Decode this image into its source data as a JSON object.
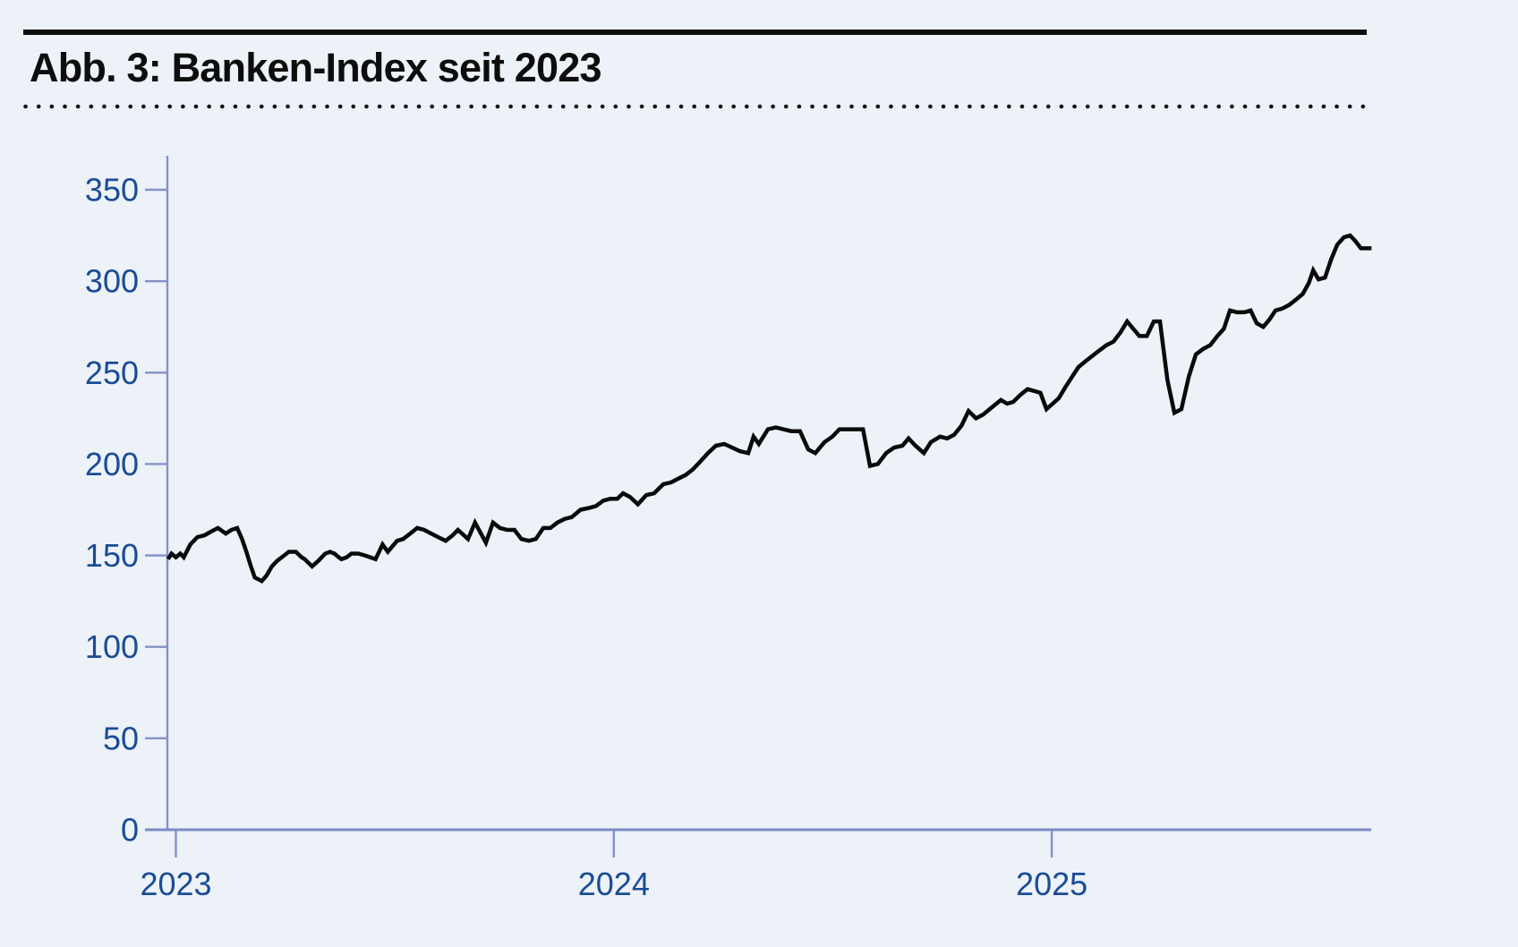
{
  "header": {
    "title": "Abb. 3: Banken-Index seit 2023"
  },
  "colors": {
    "background": "#edf1f8",
    "title": "#0d0d0d",
    "rule": "#0d0d0d",
    "dots": "#111111",
    "y_axis": "#8292c9",
    "x_axis": "#7b8cc4",
    "tick": "#8292c9",
    "tick_label": "#1a4c96",
    "series_line": "#0a0a0a"
  },
  "chart_data": {
    "type": "line",
    "title": "Abb. 3: Banken-Index seit 2023",
    "xlabel": "",
    "ylabel": "",
    "grid": false,
    "legend": null,
    "x_ticks": [
      2023,
      2024,
      2025
    ],
    "x_tick_labels": [
      "2023",
      "2024",
      "2025"
    ],
    "y_ticks": [
      0,
      50,
      100,
      150,
      200,
      250,
      300,
      350
    ],
    "y_tick_labels": [
      "0",
      "50",
      "100",
      "150",
      "200",
      "250",
      "300",
      "350"
    ],
    "xlim": [
      2022.98,
      2025.74
    ],
    "ylim": [
      0,
      369
    ],
    "series": [
      {
        "name": "Banken-Index",
        "color": "#0a0a0a",
        "points": [
          [
            2022.982,
            148
          ],
          [
            2022.99,
            151
          ],
          [
            2023.0,
            149
          ],
          [
            2023.01,
            151
          ],
          [
            2023.018,
            149
          ],
          [
            2023.033,
            156
          ],
          [
            2023.049,
            160
          ],
          [
            2023.065,
            161
          ],
          [
            2023.08,
            163
          ],
          [
            2023.096,
            165
          ],
          [
            2023.114,
            162
          ],
          [
            2023.127,
            164
          ],
          [
            2023.14,
            165
          ],
          [
            2023.151,
            159
          ],
          [
            2023.161,
            152
          ],
          [
            2023.17,
            145
          ],
          [
            2023.18,
            138
          ],
          [
            2023.196,
            136
          ],
          [
            2023.207,
            139
          ],
          [
            2023.219,
            144
          ],
          [
            2023.231,
            147
          ],
          [
            2023.247,
            150
          ],
          [
            2023.258,
            152
          ],
          [
            2023.274,
            152
          ],
          [
            2023.287,
            149
          ],
          [
            2023.294,
            148
          ],
          [
            2023.311,
            144
          ],
          [
            2023.325,
            147
          ],
          [
            2023.341,
            151
          ],
          [
            2023.352,
            152
          ],
          [
            2023.362,
            151
          ],
          [
            2023.372,
            149
          ],
          [
            2023.378,
            148
          ],
          [
            2023.39,
            149
          ],
          [
            2023.401,
            151
          ],
          [
            2023.417,
            151
          ],
          [
            2023.432,
            150
          ],
          [
            2023.444,
            149
          ],
          [
            2023.456,
            148
          ],
          [
            2023.472,
            156
          ],
          [
            2023.484,
            152
          ],
          [
            2023.505,
            158
          ],
          [
            2023.519,
            159
          ],
          [
            2023.535,
            162
          ],
          [
            2023.551,
            165
          ],
          [
            2023.567,
            164
          ],
          [
            2023.583,
            162
          ],
          [
            2023.599,
            160
          ],
          [
            2023.616,
            158
          ],
          [
            2023.632,
            161
          ],
          [
            2023.644,
            164
          ],
          [
            2023.667,
            159
          ],
          [
            2023.683,
            168
          ],
          [
            2023.708,
            157
          ],
          [
            2023.724,
            168
          ],
          [
            2023.74,
            165
          ],
          [
            2023.757,
            164
          ],
          [
            2023.773,
            164
          ],
          [
            2023.789,
            159
          ],
          [
            2023.806,
            158
          ],
          [
            2023.822,
            159
          ],
          [
            2023.839,
            165
          ],
          [
            2023.855,
            165
          ],
          [
            2023.871,
            168
          ],
          [
            2023.888,
            170
          ],
          [
            2023.904,
            171
          ],
          [
            2023.924,
            175
          ],
          [
            2023.943,
            176
          ],
          [
            2023.959,
            177
          ],
          [
            2023.976,
            180
          ],
          [
            2023.992,
            181
          ],
          [
            2024.008,
            181
          ],
          [
            2024.021,
            184
          ],
          [
            2024.037,
            182
          ],
          [
            2024.055,
            178
          ],
          [
            2024.074,
            183
          ],
          [
            2024.092,
            184
          ],
          [
            2024.113,
            189
          ],
          [
            2024.131,
            190
          ],
          [
            2024.147,
            192
          ],
          [
            2024.164,
            194
          ],
          [
            2024.18,
            197
          ],
          [
            2024.196,
            201
          ],
          [
            2024.215,
            206
          ],
          [
            2024.233,
            210
          ],
          [
            2024.252,
            211
          ],
          [
            2024.27,
            209
          ],
          [
            2024.288,
            207
          ],
          [
            2024.307,
            206
          ],
          [
            2024.319,
            215
          ],
          [
            2024.331,
            211
          ],
          [
            2024.352,
            219
          ],
          [
            2024.37,
            220
          ],
          [
            2024.387,
            219
          ],
          [
            2024.405,
            218
          ],
          [
            2024.425,
            218
          ],
          [
            2024.444,
            208
          ],
          [
            2024.46,
            206
          ],
          [
            2024.481,
            212
          ],
          [
            2024.499,
            215
          ],
          [
            2024.515,
            219
          ],
          [
            2024.534,
            219
          ],
          [
            2024.552,
            219
          ],
          [
            2024.569,
            219
          ],
          [
            2024.585,
            199
          ],
          [
            2024.603,
            200
          ],
          [
            2024.622,
            206
          ],
          [
            2024.64,
            209
          ],
          [
            2024.659,
            210
          ],
          [
            2024.673,
            214
          ],
          [
            2024.689,
            210
          ],
          [
            2024.708,
            206
          ],
          [
            2024.724,
            212
          ],
          [
            2024.745,
            215
          ],
          [
            2024.761,
            214
          ],
          [
            2024.777,
            216
          ],
          [
            2024.794,
            221
          ],
          [
            2024.81,
            229
          ],
          [
            2024.827,
            225
          ],
          [
            2024.843,
            227
          ],
          [
            2024.863,
            231
          ],
          [
            2024.884,
            235
          ],
          [
            2024.898,
            233
          ],
          [
            2024.912,
            234
          ],
          [
            2024.929,
            238
          ],
          [
            2024.945,
            241
          ],
          [
            2024.959,
            240
          ],
          [
            2024.974,
            239
          ],
          [
            2024.988,
            230
          ],
          [
            2025.002,
            233
          ],
          [
            2025.016,
            236
          ],
          [
            2025.031,
            242
          ],
          [
            2025.047,
            248
          ],
          [
            2025.061,
            253
          ],
          [
            2025.076,
            256
          ],
          [
            2025.092,
            259
          ],
          [
            2025.108,
            262
          ],
          [
            2025.125,
            265
          ],
          [
            2025.141,
            267
          ],
          [
            2025.157,
            272
          ],
          [
            2025.172,
            278
          ],
          [
            2025.186,
            274
          ],
          [
            2025.2,
            270
          ],
          [
            2025.217,
            270
          ],
          [
            2025.233,
            278
          ],
          [
            2025.247,
            278
          ],
          [
            2025.264,
            246
          ],
          [
            2025.28,
            228
          ],
          [
            2025.296,
            230
          ],
          [
            2025.313,
            248
          ],
          [
            2025.329,
            260
          ],
          [
            2025.346,
            263
          ],
          [
            2025.362,
            265
          ],
          [
            2025.378,
            270
          ],
          [
            2025.393,
            274
          ],
          [
            2025.407,
            284
          ],
          [
            2025.423,
            283
          ],
          [
            2025.44,
            283
          ],
          [
            2025.454,
            284
          ],
          [
            2025.468,
            277
          ],
          [
            2025.483,
            275
          ],
          [
            2025.497,
            279
          ],
          [
            2025.511,
            284
          ],
          [
            2025.526,
            285
          ],
          [
            2025.542,
            287
          ],
          [
            2025.558,
            290
          ],
          [
            2025.573,
            293
          ],
          [
            2025.587,
            299
          ],
          [
            2025.597,
            306
          ],
          [
            2025.609,
            301
          ],
          [
            2025.624,
            302
          ],
          [
            2025.638,
            312
          ],
          [
            2025.652,
            320
          ],
          [
            2025.667,
            324
          ],
          [
            2025.681,
            325
          ],
          [
            2025.693,
            322
          ],
          [
            2025.706,
            318
          ],
          [
            2025.72,
            318
          ],
          [
            2025.73,
            318
          ]
        ]
      }
    ]
  }
}
